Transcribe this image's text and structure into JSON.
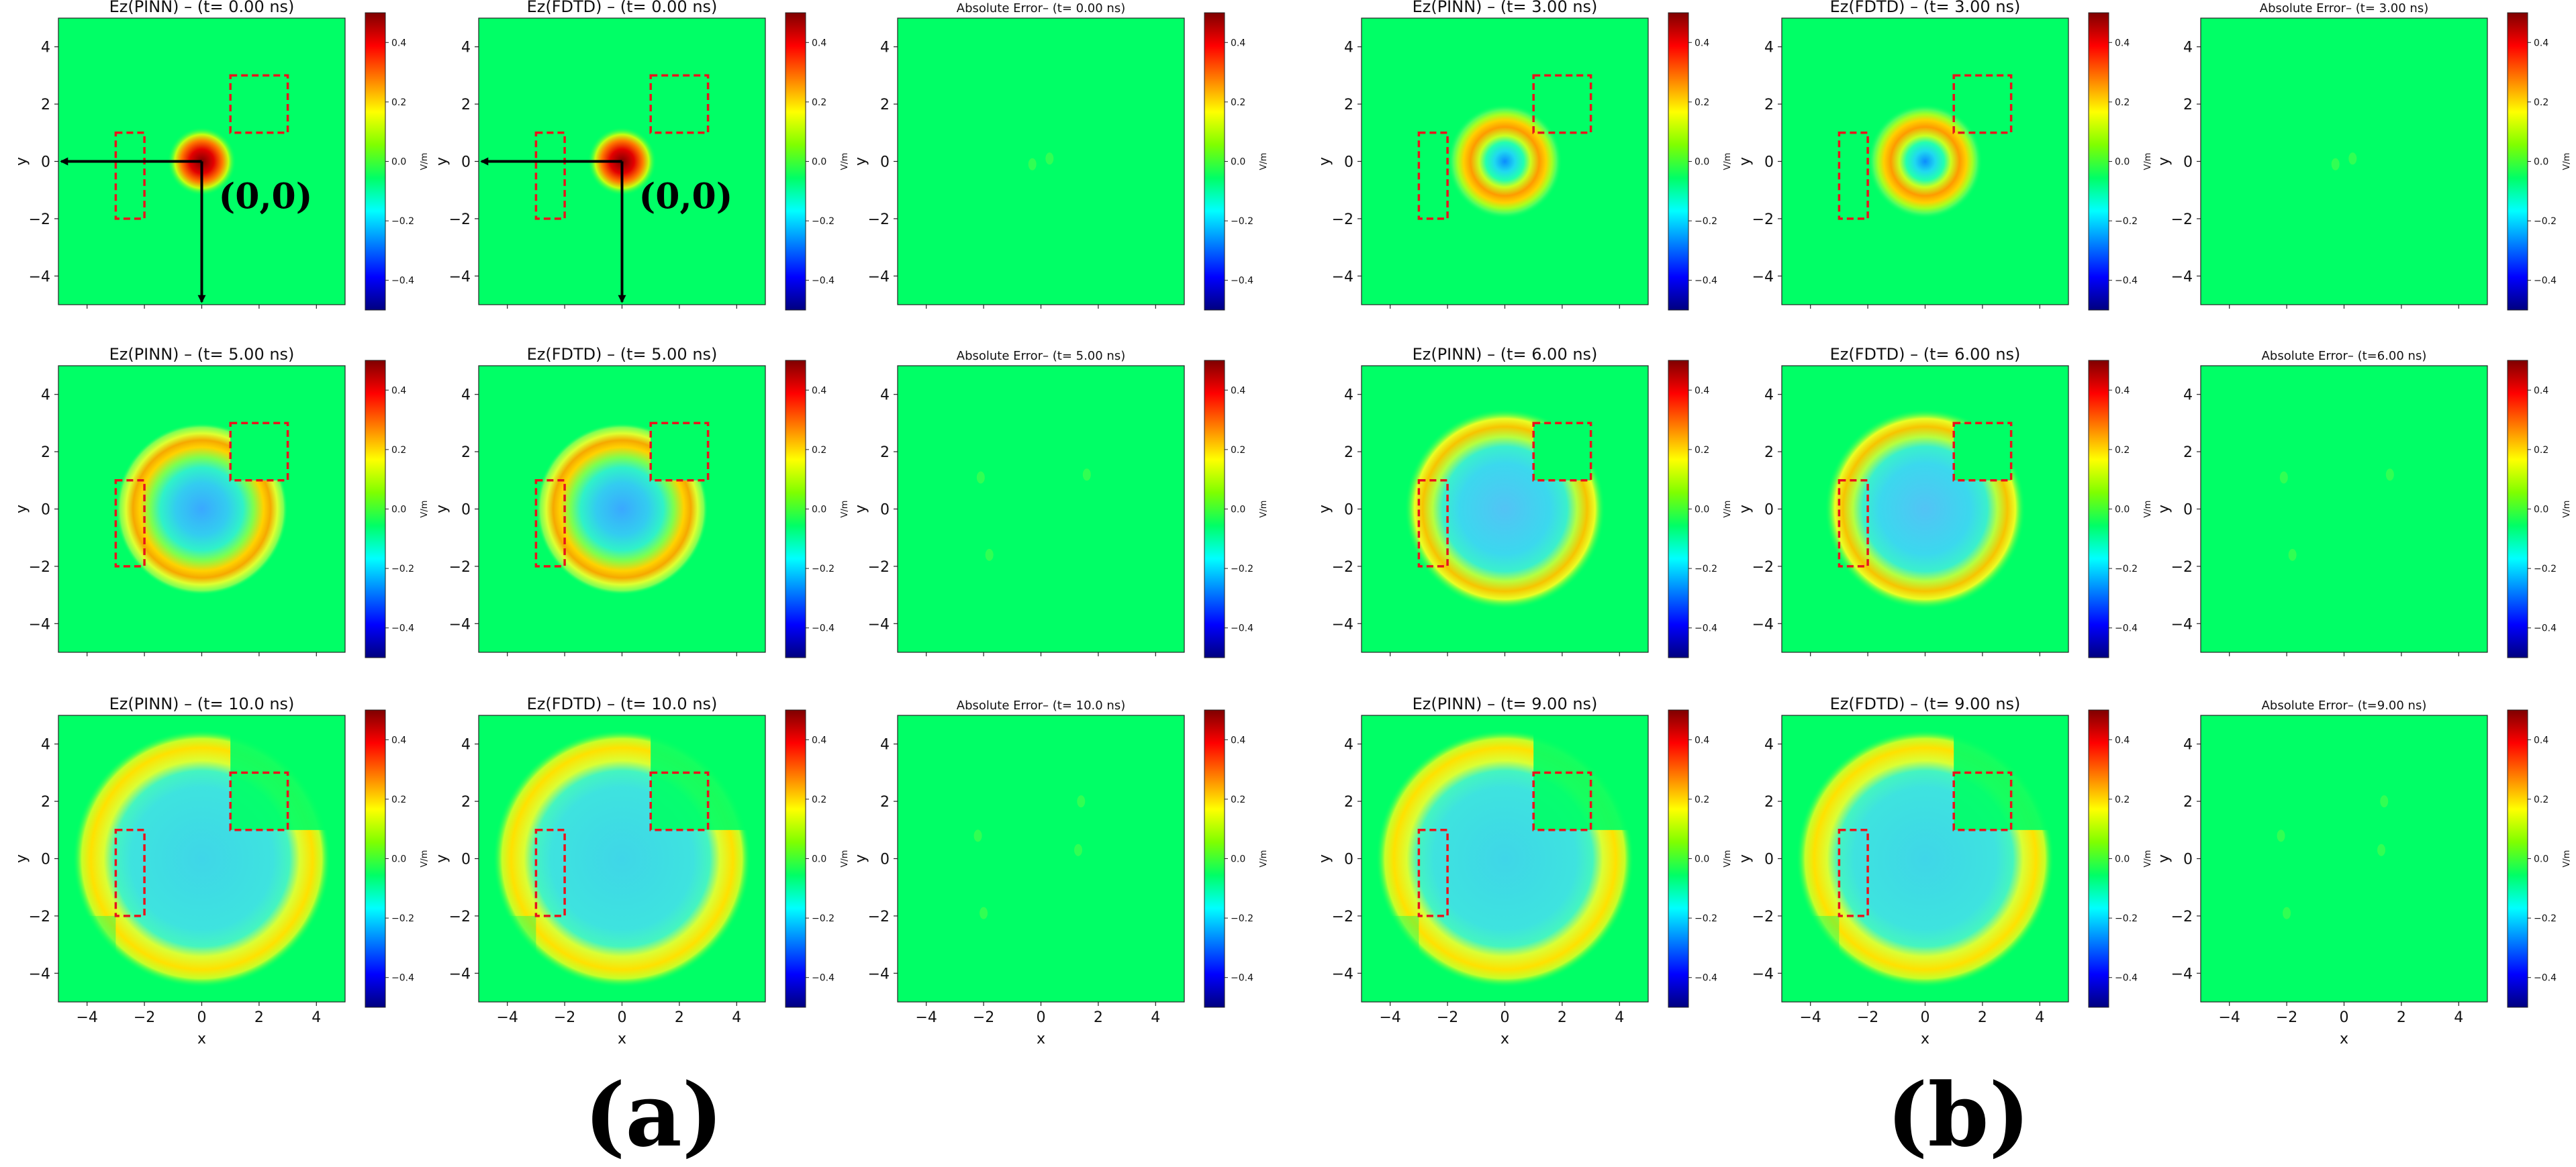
{
  "colors": {
    "field": "#00ff66",
    "box": "#e8141c",
    "colormap": [
      "#00007f",
      "#0000ff",
      "#007fff",
      "#00ffff",
      "#00ff66",
      "#7fff00",
      "#ffff00",
      "#ff7f00",
      "#ff0000",
      "#7f0000"
    ]
  },
  "axes": {
    "xlim": [
      -5,
      5
    ],
    "ylim": [
      -5,
      5
    ],
    "xticks": [
      "−4",
      "−2",
      "0",
      "2",
      "4"
    ],
    "yticks": [
      "4",
      "2",
      "0",
      "−2",
      "−4"
    ],
    "xlabel": "x",
    "ylabel": "y"
  },
  "colorbar": {
    "range": [
      -0.5,
      0.5
    ],
    "ticks": [
      "0.4",
      "0.2",
      "0.0",
      "−0.2",
      "−0.4"
    ],
    "label": "V/m"
  },
  "origin_label": "(0,0)",
  "group_labels": [
    "(a)",
    "(b)"
  ],
  "regions": [
    {
      "shape": "rect",
      "x0": -3,
      "x1": -2,
      "y0": -2,
      "y1": 1
    },
    {
      "shape": "rect",
      "x0": 1,
      "x1": 3,
      "y0": 1,
      "y1": 3
    }
  ],
  "chart_data": [
    {
      "type": "heatmap",
      "title": "Ez(PINN) – (t= 0.00 ns)",
      "time_ns": 0.0,
      "variant": "pinn"
    },
    {
      "type": "heatmap",
      "title": "Ez(FDTD) – (t= 0.00 ns)",
      "time_ns": 0.0,
      "variant": "fdtd"
    },
    {
      "type": "heatmap",
      "title": "Absolute Error– (t= 0.00 ns)",
      "time_ns": 0.0,
      "variant": "error"
    },
    {
      "type": "heatmap",
      "title": "Ez(PINN) – (t= 3.00 ns)",
      "time_ns": 3.0,
      "variant": "pinn"
    },
    {
      "type": "heatmap",
      "title": "Ez(FDTD) – (t= 3.00 ns)",
      "time_ns": 3.0,
      "variant": "fdtd"
    },
    {
      "type": "heatmap",
      "title": "Absolute Error– (t= 3.00 ns)",
      "time_ns": 3.0,
      "variant": "error"
    },
    {
      "type": "heatmap",
      "title": "Ez(PINN) – (t= 5.00 ns)",
      "time_ns": 5.0,
      "variant": "pinn"
    },
    {
      "type": "heatmap",
      "title": "Ez(FDTD) – (t= 5.00 ns)",
      "time_ns": 5.0,
      "variant": "fdtd"
    },
    {
      "type": "heatmap",
      "title": "Absolute Error– (t= 5.00 ns)",
      "time_ns": 5.0,
      "variant": "error"
    },
    {
      "type": "heatmap",
      "title": "Ez(PINN) – (t= 6.00 ns)",
      "time_ns": 6.0,
      "variant": "pinn"
    },
    {
      "type": "heatmap",
      "title": "Ez(FDTD) – (t= 6.00 ns)",
      "time_ns": 6.0,
      "variant": "fdtd"
    },
    {
      "type": "heatmap",
      "title": "Absolute Error– (t=6.00 ns)",
      "time_ns": 6.0,
      "variant": "error"
    },
    {
      "type": "heatmap",
      "title": "Ez(PINN) – (t= 10.0 ns)",
      "time_ns": 10.0,
      "variant": "pinn"
    },
    {
      "type": "heatmap",
      "title": "Ez(FDTD) – (t= 10.0 ns)",
      "time_ns": 10.0,
      "variant": "fdtd"
    },
    {
      "type": "heatmap",
      "title": "Absolute Error– (t= 10.0 ns)",
      "time_ns": 10.0,
      "variant": "error"
    },
    {
      "type": "heatmap",
      "title": "Ez(PINN) – (t= 9.00 ns)",
      "time_ns": 9.0,
      "variant": "pinn"
    },
    {
      "type": "heatmap",
      "title": "Ez(FDTD) – (t= 9.00 ns)",
      "time_ns": 9.0,
      "variant": "fdtd"
    },
    {
      "type": "heatmap",
      "title": "Absolute Error– (t=9.00 ns)",
      "time_ns": 9.0,
      "variant": "error"
    }
  ]
}
